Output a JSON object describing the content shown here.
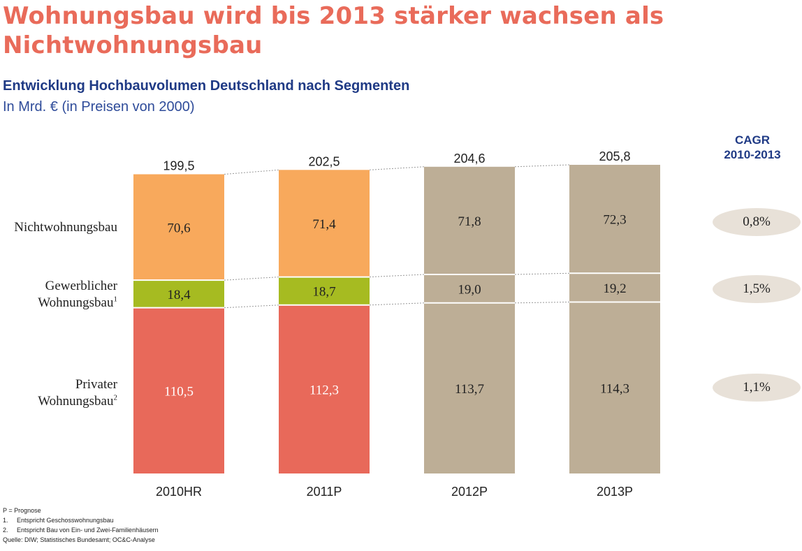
{
  "title": "Wohnungsbau wird bis 2013 stärker wachsen als Nichtwohnungsbau",
  "subtitle": "Entwicklung Hochbauvolumen Deutschland nach Segmenten",
  "unit": "In Mrd. € (in Preisen von 2000)",
  "cagr": {
    "header_line1": "CAGR",
    "header_line2": "2010-2013",
    "values": [
      "0,8%",
      "1,5%",
      "1,1%"
    ],
    "pill_color": "#e8e1d8"
  },
  "row_labels": {
    "nichtwohnungsbau": "Nichtwohnungsbau",
    "gewerblich_line1": "Gewerblicher",
    "gewerblich_line2": "Wohnungsbau",
    "gewerblich_sup": "1",
    "privat_line1": "Privater",
    "privat_line2": "Wohnungsbau",
    "privat_sup": "2"
  },
  "chart_data": {
    "type": "bar",
    "stacked": true,
    "categories": [
      "2010HR",
      "2011P",
      "2012P",
      "2013P"
    ],
    "totals": [
      199.5,
      202.5,
      204.6,
      205.8
    ],
    "totals_labels": [
      "199,5",
      "202,5",
      "204,6",
      "205,8"
    ],
    "series": [
      {
        "name": "Privater Wohnungsbau",
        "values": [
          110.5,
          112.3,
          113.7,
          114.3
        ],
        "labels": [
          "110,5",
          "112,3",
          "113,7",
          "114,3"
        ],
        "colors": [
          "#e8695a",
          "#e8695a",
          "#bdae96",
          "#bdae96"
        ],
        "label_colors": [
          "#ffffff",
          "#ffffff",
          "#222222",
          "#222222"
        ]
      },
      {
        "name": "Gewerblicher Wohnungsbau",
        "values": [
          18.4,
          18.7,
          19.0,
          19.2
        ],
        "labels": [
          "18,4",
          "18,7",
          "19,0",
          "19,2"
        ],
        "colors": [
          "#a6bb21",
          "#a6bb21",
          "#bdae96",
          "#bdae96"
        ],
        "label_colors": [
          "#222222",
          "#222222",
          "#222222",
          "#222222"
        ]
      },
      {
        "name": "Nichtwohnungsbau",
        "values": [
          70.6,
          71.4,
          71.8,
          72.3
        ],
        "labels": [
          "70,6",
          "71,4",
          "71,8",
          "72,3"
        ],
        "colors": [
          "#f8a95c",
          "#f8a95c",
          "#bdae96",
          "#bdae96"
        ],
        "label_colors": [
          "#222222",
          "#222222",
          "#222222",
          "#222222"
        ]
      }
    ],
    "ylim": [
      0,
      205.8
    ],
    "grid": false,
    "connectors": true
  },
  "footnotes": {
    "legend": "P = Prognose",
    "note1_num": "1.",
    "note1": "Entspricht Geschosswohnungsbau",
    "note2_num": "2.",
    "note2": "Entspricht Bau von Ein- und Zwei-Familienhäusern",
    "source": "Quelle: DIW; Statistisches Bundesamt; OC&C-Analyse"
  }
}
